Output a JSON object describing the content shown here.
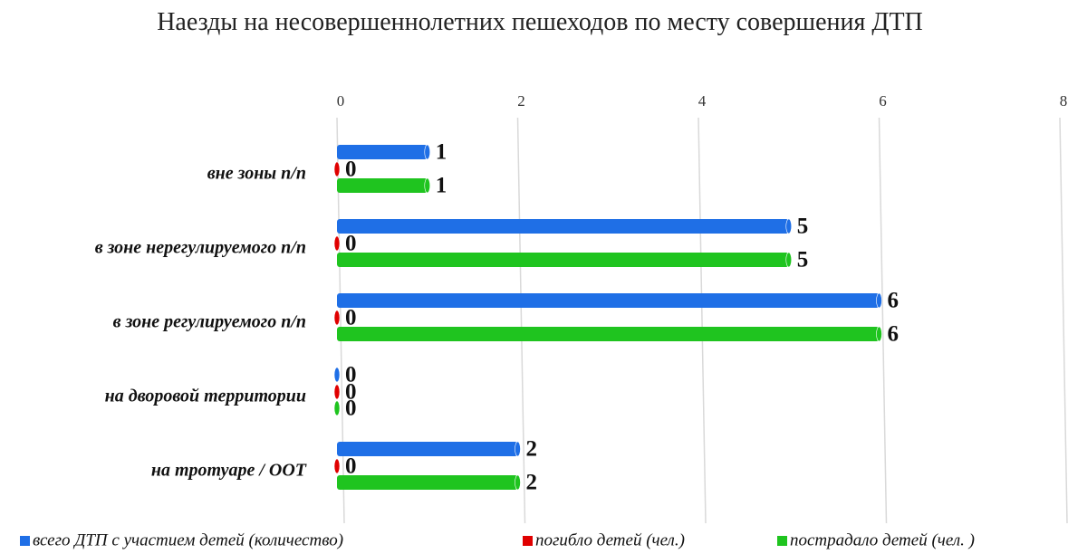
{
  "chart_data": {
    "type": "bar",
    "orientation": "horizontal",
    "title": "Наезды на несовершеннолетних пешеходов по месту совершения ДТП",
    "categories": [
      "вне зоны п/п",
      "в зоне нерегулируемого п/п",
      "в зоне регулируемого п/п",
      "на дворовой территории",
      "на тротуаре / ООТ"
    ],
    "series": [
      {
        "name": "всего ДТП с участием детей (количество)",
        "color": "#1f6fe6",
        "values": [
          1,
          5,
          6,
          0,
          2
        ]
      },
      {
        "name": "погибло детей (чел.)",
        "color": "#e00000",
        "values": [
          0,
          0,
          0,
          0,
          0
        ]
      },
      {
        "name": "пострадало детей (чел. )",
        "color": "#1fc41f",
        "values": [
          1,
          5,
          6,
          0,
          2
        ]
      }
    ],
    "xlim": [
      0,
      8
    ],
    "xticks": [
      0,
      2,
      4,
      6,
      8
    ],
    "grid": true,
    "legend": "bottom"
  }
}
